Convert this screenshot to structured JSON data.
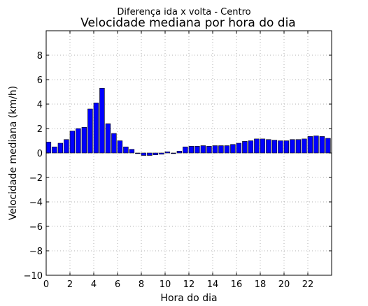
{
  "chart_data": {
    "type": "bar",
    "suptitle": "Diferença ida x volta - Centro",
    "title": "Velocidade mediana por hora do dia",
    "xlabel": "Hora do dia",
    "ylabel": "Velocidade mediana (km/h)",
    "xlim": [
      0,
      24
    ],
    "ylim": [
      -10,
      10
    ],
    "xticks": [
      0,
      2,
      4,
      6,
      8,
      10,
      12,
      14,
      16,
      18,
      20,
      22
    ],
    "yticks": [
      -10,
      -8,
      -6,
      -4,
      -2,
      0,
      2,
      4,
      6,
      8
    ],
    "grid": true,
    "bar_color": "#0000ff",
    "x": [
      0,
      0.5,
      1,
      1.5,
      2,
      2.5,
      3,
      3.5,
      4,
      4.5,
      5,
      5.5,
      6,
      6.5,
      7,
      7.5,
      8,
      8.5,
      9,
      9.5,
      10,
      10.5,
      11,
      11.5,
      12,
      12.5,
      13,
      13.5,
      14,
      14.5,
      15,
      15.5,
      16,
      16.5,
      17,
      17.5,
      18,
      18.5,
      19,
      19.5,
      20,
      20.5,
      21,
      21.5,
      22,
      22.5,
      23,
      23.5
    ],
    "values": [
      0.9,
      0.5,
      0.8,
      1.1,
      1.8,
      2.0,
      2.1,
      3.6,
      4.1,
      5.3,
      2.4,
      1.6,
      1.0,
      0.5,
      0.3,
      -0.05,
      -0.2,
      -0.2,
      -0.15,
      -0.1,
      0.1,
      -0.05,
      0.15,
      0.5,
      0.55,
      0.55,
      0.6,
      0.55,
      0.6,
      0.6,
      0.6,
      0.7,
      0.8,
      0.95,
      1.0,
      1.15,
      1.15,
      1.1,
      1.05,
      1.0,
      1.0,
      1.1,
      1.1,
      1.15,
      1.35,
      1.4,
      1.35,
      1.2
    ]
  }
}
